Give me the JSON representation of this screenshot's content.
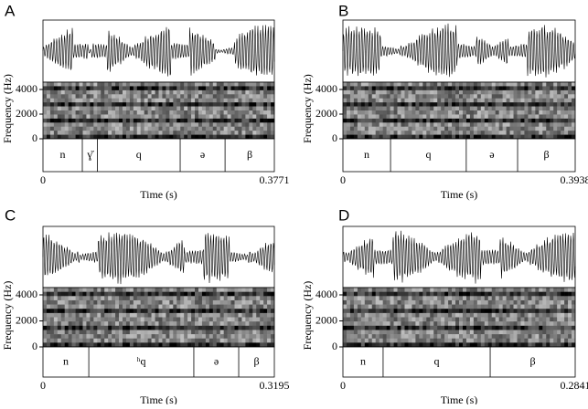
{
  "panels": [
    {
      "label": "A",
      "y_axis_label": "Frequency (Hz)",
      "y_ticks": [
        0,
        2000,
        4000
      ],
      "segments": [
        "n",
        "ɣ̆",
        "q",
        "ə",
        "β"
      ],
      "x_start": "0",
      "x_end": "0.3771",
      "x_axis_label": "Time (s)"
    },
    {
      "label": "B",
      "y_axis_label": "Frequency (Hz)",
      "y_ticks": [
        0,
        2000,
        4000
      ],
      "segments": [
        "n",
        "q",
        "ə",
        "β"
      ],
      "x_start": "0",
      "x_end": "0.3938",
      "x_axis_label": "Time (s)"
    },
    {
      "label": "C",
      "y_axis_label": "Frequency (Hz)",
      "y_ticks": [
        0,
        2000,
        4000
      ],
      "segments": [
        "n",
        "ʰq",
        "ə",
        "β"
      ],
      "x_start": "0",
      "x_end": "0.3195",
      "x_axis_label": "Time (s)"
    },
    {
      "label": "D",
      "y_axis_label": "Frequency (Hz)",
      "y_ticks": [
        0,
        2000,
        4000
      ],
      "segments": [
        "n",
        "q",
        "β"
      ],
      "x_start": "0",
      "x_end": "0.2841",
      "x_axis_label": "Time (s)"
    }
  ]
}
